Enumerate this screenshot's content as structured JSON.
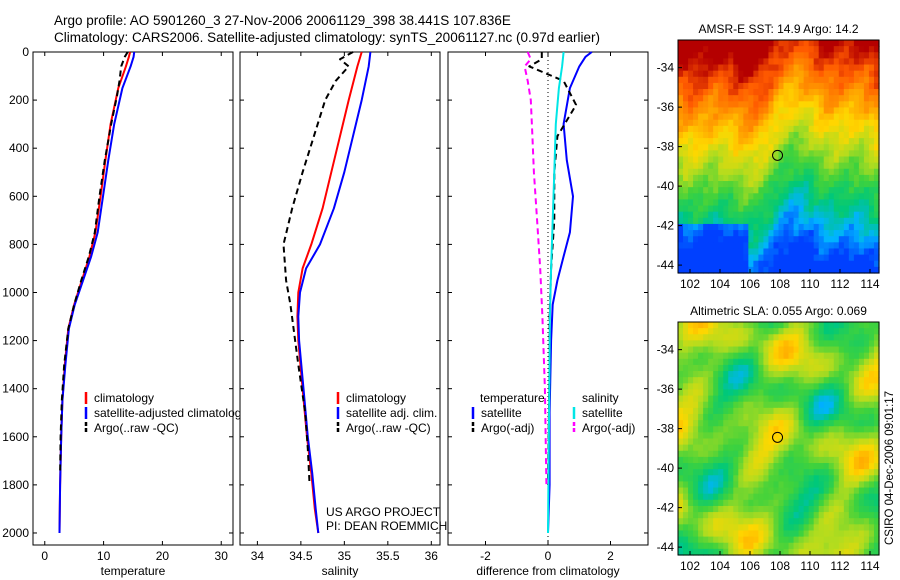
{
  "header": {
    "line1": "Argo profile: AO 5901260_3 27-Nov-2006 20061129_398 38.441S 107.836E",
    "line2": "Climatology: CARS2006. Satellite-adjusted climatology: synTS_20061127.nc (0.97d earlier)"
  },
  "credit": {
    "project": "US ARGO PROJECT",
    "pi": "PI: DEAN ROEMMICH",
    "stamp": "CSIRO 04-Dec-2006 09:01:17"
  },
  "colors": {
    "climatology": "#ff0000",
    "satellite": "#0000ff",
    "argo": "#000000",
    "sal_satellite": "#00e6e6",
    "sal_argo": "#ff00ff"
  },
  "chart_data": [
    {
      "id": "temperature",
      "type": "line",
      "xlabel": "temperature",
      "xlim": [
        -2,
        32
      ],
      "ylim": [
        2050,
        0
      ],
      "xticks": [
        0,
        10,
        20,
        30
      ],
      "yticks": [
        0,
        200,
        400,
        600,
        800,
        1000,
        1200,
        1400,
        1600,
        1800,
        2000
      ],
      "legend": [
        "climatology",
        "satellite-adjusted climatology",
        "Argo(..raw -QC)"
      ],
      "series": [
        {
          "name": "climatology",
          "color": "#ff0000",
          "dash": "",
          "x": [
            14.5,
            14.3,
            13.8,
            12.5,
            11.2,
            10.3,
            9.5,
            8.6,
            7.6,
            6.3,
            5.0,
            4.0,
            3.4,
            3.0,
            2.8,
            2.6,
            2.5
          ],
          "y": [
            0,
            20,
            60,
            150,
            300,
            450,
            600,
            750,
            850,
            950,
            1050,
            1150,
            1300,
            1450,
            1600,
            1800,
            2000
          ]
        },
        {
          "name": "satellite-adjusted climatology",
          "color": "#0000ff",
          "dash": "",
          "x": [
            15.2,
            15.1,
            14.6,
            13.2,
            11.8,
            10.8,
            9.9,
            9.0,
            7.9,
            6.5,
            5.1,
            4.1,
            3.5,
            3.0,
            2.8,
            2.6,
            2.5
          ],
          "y": [
            0,
            20,
            60,
            150,
            300,
            450,
            600,
            750,
            850,
            950,
            1050,
            1150,
            1300,
            1450,
            1600,
            1800,
            2000
          ]
        },
        {
          "name": "Argo(..raw -QC)",
          "color": "#000000",
          "dash": "6,4",
          "x": [
            14.1,
            13.6,
            13.0,
            12.7,
            12.3,
            11.3,
            10.2,
            9.3,
            8.5,
            7.5,
            6.2,
            5.0,
            4.0,
            3.3,
            2.9,
            2.7,
            2.6
          ],
          "y": [
            0,
            20,
            60,
            120,
            180,
            300,
            450,
            600,
            750,
            850,
            950,
            1050,
            1150,
            1300,
            1450,
            1600,
            1750
          ]
        }
      ]
    },
    {
      "id": "salinity",
      "type": "line",
      "xlabel": "salinity",
      "xlim": [
        33.8,
        36.1
      ],
      "ylim": [
        2050,
        0
      ],
      "xticks": [
        34,
        34.5,
        35,
        35.5,
        36
      ],
      "legend": [
        "climatology",
        "satellite adj. clim.",
        "Argo(..raw -QC)"
      ],
      "series": [
        {
          "name": "climatology",
          "color": "#ff0000",
          "dash": "",
          "x": [
            35.2,
            35.15,
            35.05,
            34.95,
            34.85,
            34.75,
            34.62,
            34.52,
            34.47,
            34.46,
            34.47,
            34.52,
            34.57,
            34.62,
            34.66,
            34.7
          ],
          "y": [
            0,
            60,
            200,
            350,
            500,
            650,
            800,
            900,
            1000,
            1100,
            1200,
            1400,
            1600,
            1750,
            1900,
            2000
          ]
        },
        {
          "name": "satellite adj. clim.",
          "color": "#0000ff",
          "dash": "",
          "x": [
            35.3,
            35.28,
            35.2,
            35.1,
            35.0,
            34.88,
            34.72,
            34.56,
            34.49,
            34.47,
            34.48,
            34.53,
            34.58,
            34.63,
            34.67,
            34.7
          ],
          "y": [
            0,
            60,
            200,
            350,
            500,
            650,
            800,
            900,
            1000,
            1100,
            1200,
            1400,
            1600,
            1750,
            1900,
            2000
          ]
        },
        {
          "name": "Argo(..raw -QC)",
          "color": "#000000",
          "dash": "6,4",
          "x": [
            35.1,
            34.95,
            35.05,
            34.9,
            34.78,
            34.65,
            34.52,
            34.4,
            34.3,
            34.33,
            34.38,
            34.47,
            34.55,
            34.58,
            34.6
          ],
          "y": [
            0,
            30,
            60,
            120,
            200,
            350,
            500,
            650,
            800,
            950,
            1050,
            1300,
            1500,
            1650,
            1800
          ]
        }
      ]
    },
    {
      "id": "difference",
      "type": "line",
      "xlabel": "difference from climatology",
      "xlim": [
        -3.2,
        3.2
      ],
      "ylim": [
        2050,
        0
      ],
      "xticks": [
        -2,
        0,
        2
      ],
      "legend_headers": [
        "temperature",
        "salinity"
      ],
      "legend": [
        "satellite",
        "Argo(-adj)",
        "satellite",
        "Argo(-adj)"
      ],
      "series": [
        {
          "name": "satellite",
          "group": "temperature",
          "color": "#0000ff",
          "dash": "",
          "x": [
            1.4,
            1.2,
            1.0,
            0.7,
            0.5,
            0.6,
            0.8,
            0.7,
            0.5,
            0.3,
            0.15,
            0.1,
            0.05,
            0.05,
            0.0
          ],
          "y": [
            0,
            20,
            60,
            150,
            300,
            450,
            600,
            750,
            850,
            950,
            1050,
            1200,
            1500,
            1800,
            2000
          ]
        },
        {
          "name": "Argo(-adj)",
          "group": "temperature",
          "color": "#000000",
          "dash": "6,4",
          "x": [
            -0.2,
            -0.2,
            -0.6,
            0.5,
            0.9,
            0.3,
            0.2,
            0.2,
            0.1,
            0.05,
            0.05,
            0.02,
            0.0
          ],
          "y": [
            0,
            30,
            60,
            120,
            220,
            350,
            500,
            700,
            900,
            1100,
            1300,
            1600,
            1800
          ]
        },
        {
          "name": "satellite",
          "group": "salinity",
          "color": "#00e6e6",
          "dash": "",
          "x": [
            0.5,
            0.45,
            0.35,
            0.25,
            0.2,
            0.15,
            0.1,
            0.06,
            0.04,
            0.02,
            0.0
          ],
          "y": [
            0,
            60,
            150,
            300,
            500,
            700,
            900,
            1100,
            1400,
            1700,
            2000
          ]
        },
        {
          "name": "Argo(-adj)",
          "group": "salinity",
          "color": "#ff00ff",
          "dash": "6,4",
          "x": [
            -0.65,
            -0.55,
            -0.75,
            -0.65,
            -0.55,
            -0.5,
            -0.45,
            -0.35,
            -0.25,
            -0.18,
            -0.1,
            -0.05
          ],
          "y": [
            0,
            30,
            60,
            120,
            200,
            350,
            500,
            700,
            900,
            1100,
            1400,
            1800
          ]
        }
      ]
    },
    {
      "id": "sst_map",
      "type": "heatmap",
      "title": "AMSR-E SST: 14.9 Argo: 14.2",
      "xlim": [
        101.2,
        114.6
      ],
      "ylim": [
        -44.4,
        -32.6
      ],
      "xticks": [
        102,
        104,
        106,
        108,
        110,
        112,
        114
      ],
      "yticks": [
        -34,
        -36,
        -38,
        -40,
        -42,
        -44
      ],
      "argo_position": {
        "lon": 107.836,
        "lat": -38.441
      },
      "palette": [
        "#0040ff",
        "#00b4ff",
        "#00c87a",
        "#40d23c",
        "#b4dc1e",
        "#ffd700",
        "#ff9600",
        "#ff5a00",
        "#b40000"
      ]
    },
    {
      "id": "sla_map",
      "type": "heatmap",
      "title": "Altimetric SLA: 0.055 Argo: 0.069",
      "xlim": [
        101.2,
        114.6
      ],
      "ylim": [
        -44.4,
        -32.6
      ],
      "xticks": [
        102,
        104,
        106,
        108,
        110,
        112,
        114
      ],
      "yticks": [
        -34,
        -36,
        -38,
        -40,
        -42,
        -44
      ],
      "argo_position": {
        "lon": 107.836,
        "lat": -38.441
      },
      "palette": [
        "#0040ff",
        "#00b4ff",
        "#00c87a",
        "#40d23c",
        "#b4dc1e",
        "#ffd700",
        "#ff9600",
        "#ff5a00",
        "#b40000"
      ]
    }
  ]
}
